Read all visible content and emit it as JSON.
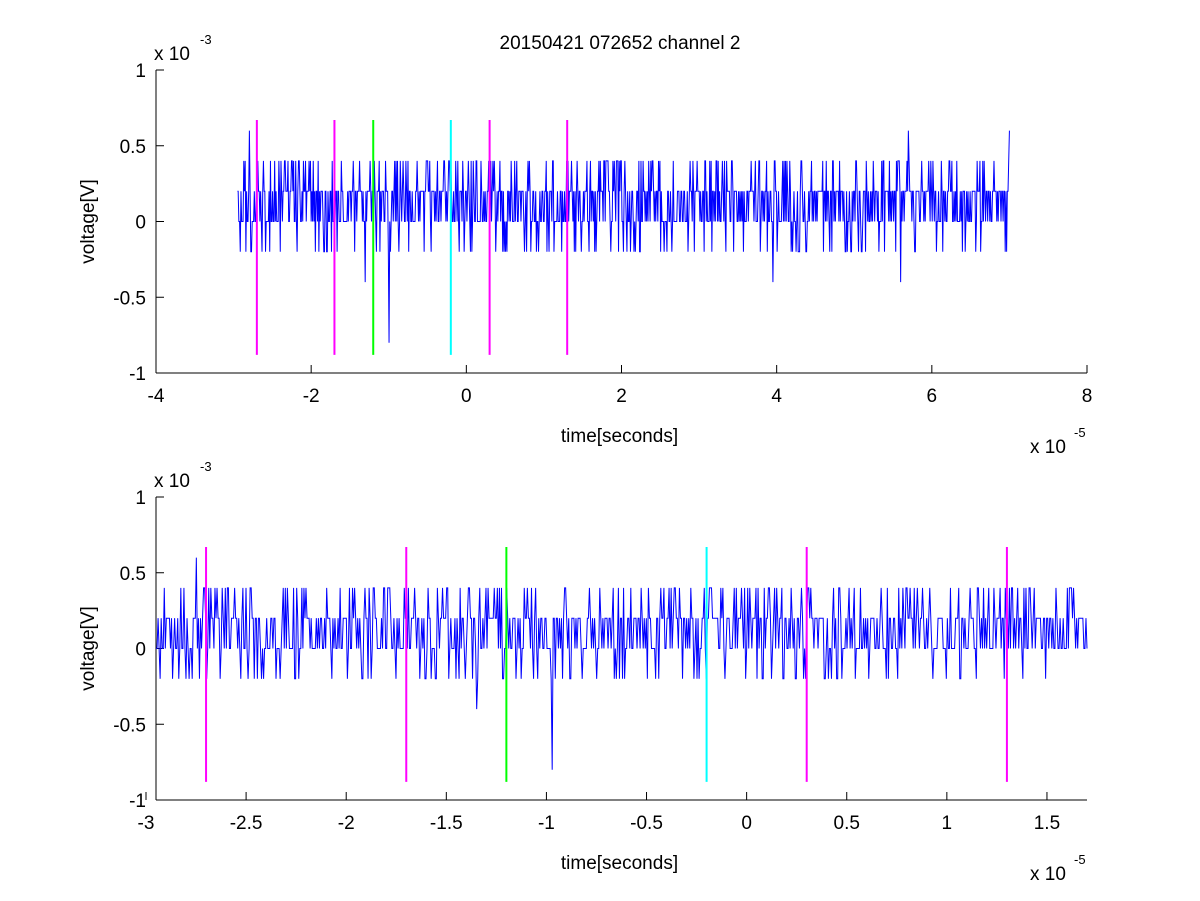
{
  "figure_title": "20150421 072652 channel 2",
  "chart_data": [
    {
      "type": "line",
      "title": "20150421 072652 channel 2",
      "xlabel": "time[seconds]",
      "ylabel": "voltage[V]",
      "x_exponent_label": "x 10",
      "x_exponent": "-5",
      "y_exponent_label": "x 10",
      "y_exponent": "-3",
      "xlim": [
        -4,
        8
      ],
      "ylim": [
        -1,
        1
      ],
      "xticks": [
        "-4",
        "-2",
        "0",
        "2",
        "4",
        "6",
        "8"
      ],
      "yticks": [
        "-1",
        "-0.5",
        "0",
        "0.5",
        "1"
      ],
      "grid": false,
      "series": [
        {
          "color": "#0000ff",
          "x_range": [
            -2.95,
            7.0
          ],
          "baseline": 0.1,
          "noise_levels": [
            0,
            0.2,
            0.4,
            -0.2
          ],
          "notable_extremes": [
            {
              "x": -2.8,
              "y": 0.6
            },
            {
              "x": -1.0,
              "y": -0.8
            },
            {
              "x": -1.3,
              "y": -0.4
            },
            {
              "x": 3.95,
              "y": -0.4
            },
            {
              "x": 5.6,
              "y": -0.4
            },
            {
              "x": 5.7,
              "y": 0.6
            },
            {
              "x": 7.0,
              "y": 0.6
            }
          ]
        }
      ],
      "vertical_markers": [
        {
          "x": -2.7,
          "color": "#ff00ff",
          "y_range": [
            -0.88,
            0.67
          ]
        },
        {
          "x": -1.7,
          "color": "#ff00ff",
          "y_range": [
            -0.88,
            0.67
          ]
        },
        {
          "x": -1.2,
          "color": "#00ff00",
          "y_range": [
            -0.88,
            0.67
          ]
        },
        {
          "x": -0.2,
          "color": "#00ffff",
          "y_range": [
            -0.88,
            0.67
          ]
        },
        {
          "x": 0.3,
          "color": "#ff00ff",
          "y_range": [
            -0.88,
            0.67
          ]
        },
        {
          "x": 1.3,
          "color": "#ff00ff",
          "y_range": [
            -0.88,
            0.67
          ]
        }
      ]
    },
    {
      "type": "line",
      "title": "",
      "xlabel": "time[seconds]",
      "ylabel": "voltage[V]",
      "x_exponent_label": "x 10",
      "x_exponent": "-5",
      "y_exponent_label": "x 10",
      "y_exponent": "-3",
      "xlim": [
        -2.95,
        1.7
      ],
      "ylim": [
        -1,
        1
      ],
      "xticks": [
        "-3",
        "-2.5",
        "-2",
        "-1.5",
        "-1",
        "-0.5",
        "0",
        "0.5",
        "1",
        "1.5"
      ],
      "yticks": [
        "-1",
        "-0.5",
        "0",
        "0.5",
        "1"
      ],
      "grid": false,
      "series": [
        {
          "color": "#0000ff",
          "x_range": [
            -2.95,
            1.7
          ],
          "baseline": 0.1,
          "noise_levels": [
            0,
            0.2,
            0.4,
            -0.2
          ],
          "notable_extremes": [
            {
              "x": -2.75,
              "y": 0.6
            },
            {
              "x": -1.35,
              "y": -0.4
            },
            {
              "x": -0.97,
              "y": -0.8
            },
            {
              "x": -0.2,
              "y": -0.2
            }
          ]
        }
      ],
      "vertical_markers": [
        {
          "x": -2.7,
          "color": "#ff00ff",
          "y_range": [
            -0.88,
            0.67
          ]
        },
        {
          "x": -1.7,
          "color": "#ff00ff",
          "y_range": [
            -0.88,
            0.67
          ]
        },
        {
          "x": -1.2,
          "color": "#00ff00",
          "y_range": [
            -0.88,
            0.67
          ]
        },
        {
          "x": -0.2,
          "color": "#00ffff",
          "y_range": [
            -0.88,
            0.67
          ]
        },
        {
          "x": 0.3,
          "color": "#ff00ff",
          "y_range": [
            -0.88,
            0.67
          ]
        },
        {
          "x": 1.3,
          "color": "#ff00ff",
          "y_range": [
            -0.88,
            0.67
          ]
        }
      ]
    }
  ]
}
